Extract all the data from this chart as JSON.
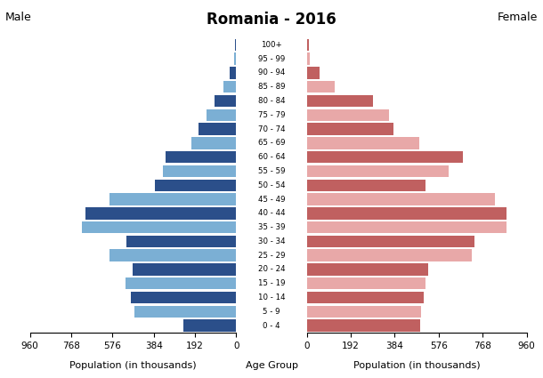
{
  "title": "Romania - 2016",
  "male_label": "Male",
  "female_label": "Female",
  "xlabel_left": "Population (in thousands)",
  "xlabel_center": "Age Group",
  "xlabel_right": "Population (in thousands)",
  "age_groups": [
    "0 - 4",
    "5 - 9",
    "10 - 14",
    "15 - 19",
    "20 - 24",
    "25 - 29",
    "30 - 34",
    "35 - 39",
    "40 - 44",
    "45 - 49",
    "50 - 54",
    "55 - 59",
    "60 - 64",
    "65 - 69",
    "70 - 74",
    "75 - 79",
    "80 - 84",
    "85 - 89",
    "90 - 94",
    "95 - 99",
    "100+"
  ],
  "male_values": [
    245,
    475,
    490,
    515,
    480,
    590,
    510,
    720,
    700,
    590,
    380,
    340,
    330,
    210,
    175,
    140,
    100,
    60,
    30,
    10,
    5
  ],
  "female_values": [
    495,
    500,
    510,
    520,
    530,
    720,
    730,
    870,
    870,
    820,
    520,
    620,
    680,
    490,
    380,
    360,
    290,
    120,
    55,
    12,
    8
  ],
  "male_colors": [
    "#7bafd4",
    "#2b4f8a",
    "#7bafd4",
    "#2b4f8a",
    "#7bafd4",
    "#2b4f8a",
    "#7bafd4",
    "#2b4f8a",
    "#2b4f8a",
    "#7bafd4",
    "#2b4f8a",
    "#7bafd4",
    "#2b4f8a",
    "#7bafd4",
    "#7bafd4",
    "#7bafd4",
    "#7bafd4",
    "#7bafd4",
    "#2b4f8a",
    "#7bafd4",
    "#7bafd4"
  ],
  "female_colors": [
    "#c06060",
    "#e8a8a8",
    "#c06060",
    "#e8a8a8",
    "#c06060",
    "#e8a8a8",
    "#c06060",
    "#e8a8a8",
    "#c06060",
    "#e8a8a8",
    "#c06060",
    "#e8a8a8",
    "#c06060",
    "#e8a8a8",
    "#c06060",
    "#e8a8a8",
    "#c06060",
    "#e8a8a8",
    "#c06060",
    "#e8a8a8",
    "#e8a8a8"
  ],
  "xlim": 960,
  "xticks": [
    0,
    192,
    384,
    576,
    768,
    960
  ],
  "background_color": "#ffffff",
  "bar_height": 0.85
}
